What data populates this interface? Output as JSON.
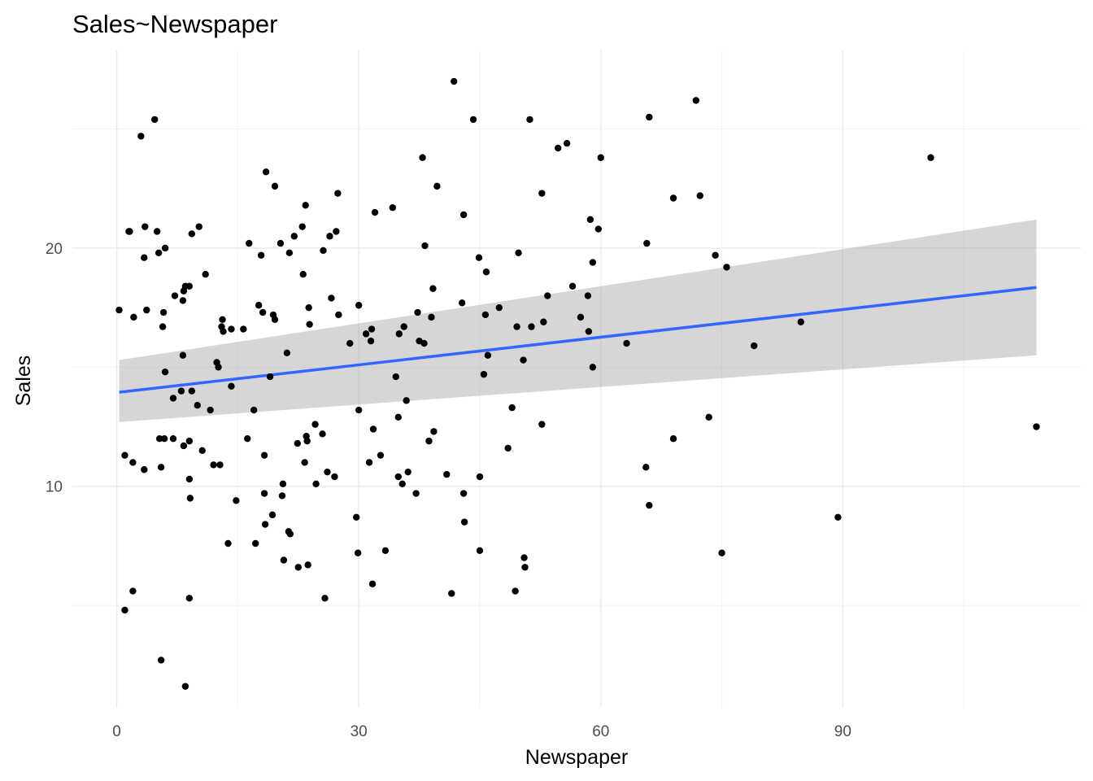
{
  "chart_data": {
    "type": "scatter",
    "title": "Sales~Newspaper",
    "xlabel": "Newspaper",
    "ylabel": "Sales",
    "xlim": [
      -5.5,
      119.5
    ],
    "ylim": [
      0.7,
      28.3
    ],
    "x_ticks": [
      0,
      30,
      60,
      90
    ],
    "x_minor_ticks": [
      15,
      45,
      75,
      105
    ],
    "y_ticks": [
      10,
      20
    ],
    "y_minor_ticks": [
      5,
      15,
      25
    ],
    "grid": true,
    "legend": "none",
    "point_color": "#000000",
    "fit_color": "#3366ff",
    "band_color": "#999999",
    "fit": {
      "method": "lm",
      "x": [
        0.3,
        114
      ],
      "y": [
        13.95,
        18.35
      ],
      "ci_lower": [
        12.7,
        15.5
      ],
      "ci_upper": [
        15.3,
        21.2
      ]
    },
    "points": [
      [
        0.3,
        17.4
      ],
      [
        1,
        11.3
      ],
      [
        1,
        4.8
      ],
      [
        1.5,
        20.7
      ],
      [
        1.6,
        20.7
      ],
      [
        2,
        11
      ],
      [
        2,
        5.6
      ],
      [
        2.1,
        17.1
      ],
      [
        3,
        24.7
      ],
      [
        3.4,
        19.6
      ],
      [
        3.4,
        10.7
      ],
      [
        3.5,
        20.9
      ],
      [
        3.7,
        17.4
      ],
      [
        4.7,
        25.4
      ],
      [
        5,
        20.7
      ],
      [
        5.2,
        19.8
      ],
      [
        5.3,
        12
      ],
      [
        5.5,
        2.7
      ],
      [
        5.5,
        10.8
      ],
      [
        5.7,
        16.7
      ],
      [
        5.8,
        17.3
      ],
      [
        5.9,
        12
      ],
      [
        6,
        14.8
      ],
      [
        6,
        20
      ],
      [
        7,
        13.7
      ],
      [
        7,
        12
      ],
      [
        7.2,
        18
      ],
      [
        8,
        14
      ],
      [
        8.2,
        15.5
      ],
      [
        8.2,
        17.8
      ],
      [
        8.3,
        18.2
      ],
      [
        8.3,
        11.7
      ],
      [
        8.5,
        1.6
      ],
      [
        8.5,
        18.4
      ],
      [
        9,
        10.3
      ],
      [
        9,
        5.3
      ],
      [
        9,
        18.4
      ],
      [
        9,
        11.9
      ],
      [
        9.1,
        9.5
      ],
      [
        9.3,
        14
      ],
      [
        9.3,
        20.6
      ],
      [
        10,
        13.4
      ],
      [
        10.2,
        20.9
      ],
      [
        10.6,
        11.5
      ],
      [
        11,
        18.9
      ],
      [
        11.6,
        13.2
      ],
      [
        12,
        10.9
      ],
      [
        12.4,
        15.2
      ],
      [
        12.6,
        15
      ],
      [
        12.8,
        10.9
      ],
      [
        13,
        16.7
      ],
      [
        13.1,
        17
      ],
      [
        13.2,
        16.5
      ],
      [
        13.8,
        7.6
      ],
      [
        14.2,
        14.2
      ],
      [
        14.2,
        16.6
      ],
      [
        14.8,
        9.4
      ],
      [
        15.7,
        16.6
      ],
      [
        16.2,
        12
      ],
      [
        16.4,
        20.2
      ],
      [
        17,
        13.2
      ],
      [
        17.2,
        7.6
      ],
      [
        17.6,
        17.6
      ],
      [
        17.9,
        19.7
      ],
      [
        18.1,
        17.3
      ],
      [
        18.3,
        11.3
      ],
      [
        18.3,
        9.7
      ],
      [
        18.4,
        8.4
      ],
      [
        18.5,
        23.2
      ],
      [
        19,
        14.6
      ],
      [
        19.3,
        8.8
      ],
      [
        19.4,
        17.2
      ],
      [
        19.6,
        17
      ],
      [
        19.6,
        22.6
      ],
      [
        20.3,
        20.2
      ],
      [
        20.5,
        9.6
      ],
      [
        20.6,
        10.1
      ],
      [
        20.7,
        6.9
      ],
      [
        21.1,
        15.6
      ],
      [
        21.3,
        8.1
      ],
      [
        21.4,
        19.8
      ],
      [
        21.5,
        8
      ],
      [
        22,
        20.5
      ],
      [
        22.4,
        11.8
      ],
      [
        22.5,
        6.6
      ],
      [
        23,
        20.9
      ],
      [
        23.1,
        18.9
      ],
      [
        23.3,
        11
      ],
      [
        23.4,
        21.8
      ],
      [
        23.5,
        12.1
      ],
      [
        23.6,
        11.9
      ],
      [
        23.7,
        6.7
      ],
      [
        23.8,
        17.5
      ],
      [
        23.9,
        16.8
      ],
      [
        24.6,
        12.6
      ],
      [
        24.7,
        10.1
      ],
      [
        25.5,
        12.2
      ],
      [
        25.6,
        19.9
      ],
      [
        25.8,
        5.3
      ],
      [
        26.1,
        10.6
      ],
      [
        26.4,
        20.5
      ],
      [
        26.6,
        17.9
      ],
      [
        27,
        10.4
      ],
      [
        27.2,
        20.7
      ],
      [
        27.4,
        22.3
      ],
      [
        27.5,
        17.2
      ],
      [
        28.9,
        16
      ],
      [
        29.7,
        8.7
      ],
      [
        29.9,
        7.2
      ],
      [
        30,
        13.2
      ],
      [
        30,
        17.6
      ],
      [
        30.9,
        16.4
      ],
      [
        31.3,
        11
      ],
      [
        31.5,
        16.1
      ],
      [
        31.6,
        16.6
      ],
      [
        31.7,
        5.9
      ],
      [
        31.8,
        12.4
      ],
      [
        32,
        21.5
      ],
      [
        32.7,
        11.3
      ],
      [
        33.3,
        7.3
      ],
      [
        34.2,
        21.7
      ],
      [
        34.6,
        14.6
      ],
      [
        34.9,
        10.4
      ],
      [
        34.9,
        12.9
      ],
      [
        35,
        16.4
      ],
      [
        35.4,
        10.1
      ],
      [
        35.6,
        16.7
      ],
      [
        35.9,
        13.6
      ],
      [
        36.1,
        10.6
      ],
      [
        37.1,
        9.7
      ],
      [
        37.3,
        17.3
      ],
      [
        37.5,
        16.1
      ],
      [
        37.9,
        23.8
      ],
      [
        38.1,
        16
      ],
      [
        38.2,
        20.1
      ],
      [
        38.7,
        11.9
      ],
      [
        39,
        17.1
      ],
      [
        39.2,
        18.3
      ],
      [
        39.3,
        12.3
      ],
      [
        39.7,
        22.6
      ],
      [
        40.9,
        10.5
      ],
      [
        41.5,
        5.5
      ],
      [
        41.8,
        27
      ],
      [
        42.8,
        17.7
      ],
      [
        43,
        21.4
      ],
      [
        43,
        9.7
      ],
      [
        43.1,
        8.5
      ],
      [
        44.2,
        25.4
      ],
      [
        44.9,
        19.6
      ],
      [
        45,
        10.4
      ],
      [
        45,
        7.3
      ],
      [
        45.5,
        14.7
      ],
      [
        45.7,
        17.2
      ],
      [
        45.8,
        19
      ],
      [
        46,
        15.5
      ],
      [
        47.4,
        17.5
      ],
      [
        48.5,
        11.6
      ],
      [
        49,
        13.3
      ],
      [
        49.4,
        5.6
      ],
      [
        49.6,
        16.7
      ],
      [
        49.8,
        19.8
      ],
      [
        50.4,
        15.3
      ],
      [
        50.5,
        7
      ],
      [
        50.6,
        6.6
      ],
      [
        51.2,
        25.4
      ],
      [
        51.4,
        16.7
      ],
      [
        52.7,
        22.3
      ],
      [
        52.7,
        12.6
      ],
      [
        52.9,
        16.9
      ],
      [
        53.4,
        18
      ],
      [
        54.7,
        24.2
      ],
      [
        55.8,
        24.4
      ],
      [
        56.5,
        18.4
      ],
      [
        57.5,
        17.1
      ],
      [
        58.4,
        18
      ],
      [
        58.5,
        16.5
      ],
      [
        58.7,
        21.2
      ],
      [
        59,
        19.4
      ],
      [
        59,
        15
      ],
      [
        59.7,
        20.8
      ],
      [
        60,
        23.8
      ],
      [
        63.2,
        16
      ],
      [
        65.6,
        10.8
      ],
      [
        65.7,
        20.2
      ],
      [
        66,
        25.5
      ],
      [
        66,
        9.2
      ],
      [
        69,
        12
      ],
      [
        69,
        22.1
      ],
      [
        71.8,
        26.2
      ],
      [
        72.3,
        22.2
      ],
      [
        73.4,
        12.9
      ],
      [
        74.2,
        19.7
      ],
      [
        75,
        7.2
      ],
      [
        75.6,
        19.2
      ],
      [
        79,
        15.9
      ],
      [
        84.8,
        16.9
      ],
      [
        89.4,
        8.7
      ],
      [
        100.9,
        23.8
      ],
      [
        114,
        12.5
      ]
    ]
  }
}
